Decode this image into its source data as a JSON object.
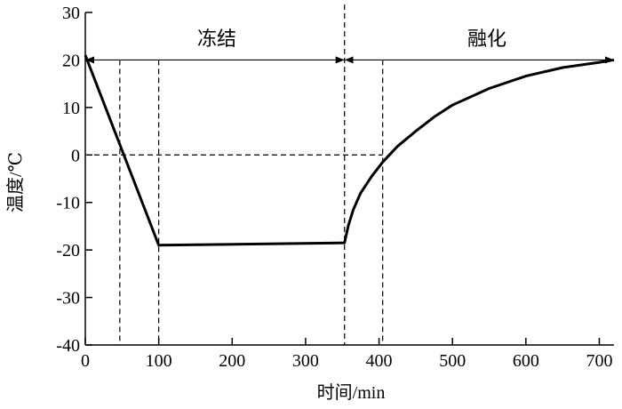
{
  "chart_data": {
    "type": "line",
    "title": "",
    "xlabel": "时间/min",
    "ylabel": "温度/℃",
    "xlim": [
      0,
      720
    ],
    "ylim": [
      -40,
      30
    ],
    "xticks": [
      0,
      100,
      200,
      300,
      400,
      500,
      600,
      700
    ],
    "yticks": [
      30,
      20,
      10,
      0,
      -10,
      -20,
      -30,
      -40
    ],
    "grid": false,
    "series": [
      {
        "name": "温度",
        "x": [
          0,
          100,
          353,
          358,
          365,
          375,
          390,
          405,
          425,
          450,
          475,
          500,
          550,
          600,
          650,
          700,
          720
        ],
        "y": [
          21,
          -19,
          -18.5,
          -15,
          -11.5,
          -8,
          -4.5,
          -1.5,
          1.8,
          5,
          8,
          10.5,
          14,
          16.6,
          18.4,
          19.5,
          20
        ]
      }
    ],
    "annotations": {
      "phases": [
        {
          "label": "冻结",
          "from": 0,
          "to": 353
        },
        {
          "label": "融化",
          "from": 353,
          "to": 720
        }
      ],
      "arrow_level": 20,
      "dashed_verticals": [
        47,
        100,
        353,
        405
      ],
      "dashed_horizontal": {
        "y": 0,
        "to": 405
      }
    }
  }
}
